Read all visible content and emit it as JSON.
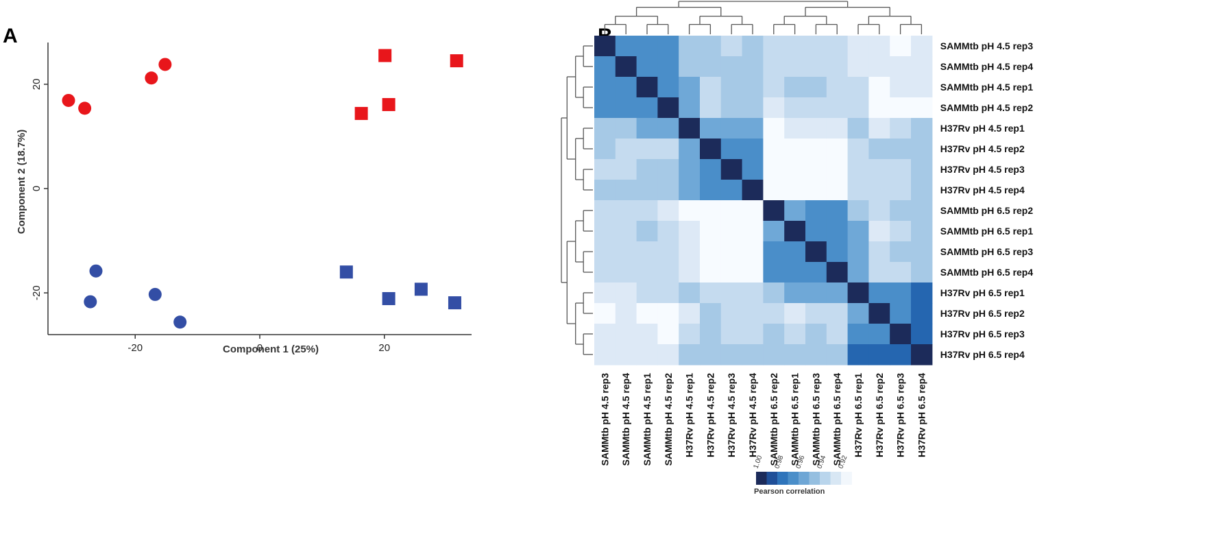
{
  "chart_data": [
    {
      "panel": "A",
      "type": "scatter",
      "xlabel": "Component 1 (25%)",
      "ylabel": "Component 2 (18.7%)",
      "xlim": [
        -34,
        34
      ],
      "ylim": [
        -28,
        28
      ],
      "xticks": [
        -20,
        0,
        20
      ],
      "yticks": [
        -20,
        0,
        20
      ],
      "colors": {
        "red": "#e8161b",
        "blue": "#334ea5"
      },
      "series": [
        {
          "name": "red-circles",
          "marker": "circle",
          "color": "red",
          "points": [
            [
              -30.7,
              16.9
            ],
            [
              -28.1,
              15.4
            ],
            [
              -17.4,
              21.2
            ],
            [
              -15.2,
              23.8
            ]
          ]
        },
        {
          "name": "red-squares",
          "marker": "square",
          "color": "red",
          "points": [
            [
              20.1,
              25.5
            ],
            [
              31.6,
              24.5
            ],
            [
              16.3,
              14.4
            ],
            [
              20.7,
              16.1
            ]
          ]
        },
        {
          "name": "blue-circles",
          "marker": "circle",
          "color": "blue",
          "points": [
            [
              -26.3,
              -15.8
            ],
            [
              -27.2,
              -21.7
            ],
            [
              -16.8,
              -20.3
            ],
            [
              -12.8,
              -25.6
            ]
          ]
        },
        {
          "name": "blue-squares",
          "marker": "square",
          "color": "blue",
          "points": [
            [
              13.9,
              -16.0
            ],
            [
              20.7,
              -21.1
            ],
            [
              25.9,
              -19.3
            ],
            [
              31.3,
              -21.9
            ]
          ]
        }
      ]
    },
    {
      "panel": "B",
      "type": "heatmap",
      "labels": [
        "SAMMtb pH 4.5 rep3",
        "SAMMtb pH 4.5 rep4",
        "SAMMtb pH 4.5 rep1",
        "SAMMtb pH 4.5 rep2",
        "H37Rv pH 4.5 rep1",
        "H37Rv pH 4.5 rep2",
        "H37Rv pH 4.5 rep3",
        "H37Rv pH 4.5 rep4",
        "SAMMtb pH 6.5 rep2",
        "SAMMtb pH 6.5 rep1",
        "SAMMtb pH 6.5 rep3",
        "SAMMtb pH 6.5 rep4",
        "H37Rv pH 6.5 rep1",
        "H37Rv pH 6.5 rep2",
        "H37Rv pH 6.5 rep3",
        "H37Rv pH 6.5 rep4"
      ],
      "matrix": [
        [
          1.0,
          0.96,
          0.96,
          0.96,
          0.94,
          0.94,
          0.93,
          0.94,
          0.93,
          0.93,
          0.93,
          0.93,
          0.92,
          0.92,
          0.91,
          0.92
        ],
        [
          0.96,
          1.0,
          0.96,
          0.96,
          0.94,
          0.94,
          0.94,
          0.94,
          0.93,
          0.93,
          0.93,
          0.93,
          0.92,
          0.92,
          0.92,
          0.92
        ],
        [
          0.96,
          0.96,
          1.0,
          0.96,
          0.95,
          0.93,
          0.94,
          0.94,
          0.93,
          0.94,
          0.94,
          0.93,
          0.93,
          0.91,
          0.92,
          0.92
        ],
        [
          0.96,
          0.96,
          0.96,
          1.0,
          0.95,
          0.93,
          0.94,
          0.94,
          0.92,
          0.93,
          0.93,
          0.93,
          0.93,
          0.91,
          0.91,
          0.91
        ],
        [
          0.94,
          0.94,
          0.95,
          0.95,
          1.0,
          0.95,
          0.95,
          0.95,
          0.91,
          0.92,
          0.92,
          0.92,
          0.94,
          0.92,
          0.93,
          0.94
        ],
        [
          0.94,
          0.93,
          0.93,
          0.93,
          0.95,
          1.0,
          0.96,
          0.96,
          0.91,
          0.91,
          0.91,
          0.91,
          0.93,
          0.94,
          0.94,
          0.94
        ],
        [
          0.93,
          0.93,
          0.94,
          0.94,
          0.95,
          0.96,
          1.0,
          0.96,
          0.91,
          0.91,
          0.91,
          0.91,
          0.93,
          0.93,
          0.93,
          0.94
        ],
        [
          0.94,
          0.94,
          0.94,
          0.94,
          0.95,
          0.96,
          0.96,
          1.0,
          0.91,
          0.91,
          0.91,
          0.91,
          0.93,
          0.93,
          0.93,
          0.94
        ],
        [
          0.93,
          0.93,
          0.93,
          0.92,
          0.91,
          0.91,
          0.91,
          0.91,
          1.0,
          0.95,
          0.96,
          0.96,
          0.94,
          0.93,
          0.94,
          0.94
        ],
        [
          0.93,
          0.93,
          0.94,
          0.93,
          0.92,
          0.91,
          0.91,
          0.91,
          0.95,
          1.0,
          0.96,
          0.96,
          0.95,
          0.92,
          0.93,
          0.94
        ],
        [
          0.93,
          0.93,
          0.93,
          0.93,
          0.92,
          0.91,
          0.91,
          0.91,
          0.96,
          0.96,
          1.0,
          0.96,
          0.95,
          0.93,
          0.94,
          0.94
        ],
        [
          0.93,
          0.93,
          0.93,
          0.93,
          0.92,
          0.91,
          0.91,
          0.91,
          0.96,
          0.96,
          0.96,
          1.0,
          0.95,
          0.93,
          0.93,
          0.94
        ],
        [
          0.92,
          0.92,
          0.93,
          0.93,
          0.94,
          0.93,
          0.93,
          0.93,
          0.94,
          0.95,
          0.95,
          0.95,
          1.0,
          0.96,
          0.96,
          0.97
        ],
        [
          0.91,
          0.92,
          0.91,
          0.91,
          0.92,
          0.94,
          0.93,
          0.93,
          0.93,
          0.92,
          0.93,
          0.93,
          0.95,
          1.0,
          0.96,
          0.97
        ],
        [
          0.92,
          0.92,
          0.92,
          0.91,
          0.93,
          0.94,
          0.93,
          0.93,
          0.94,
          0.93,
          0.94,
          0.93,
          0.96,
          0.96,
          1.0,
          0.97
        ],
        [
          0.92,
          0.92,
          0.92,
          0.92,
          0.94,
          0.94,
          0.94,
          0.94,
          0.94,
          0.94,
          0.94,
          0.94,
          0.97,
          0.97,
          0.97,
          1.0
        ]
      ],
      "dendrogram": {
        "row_groups": [
          [
            "SAMMtb pH 4.5"
          ],
          [
            "H37Rv pH 4.5"
          ],
          [
            "SAMMtb pH 6.5"
          ],
          [
            "H37Rv pH 6.5"
          ]
        ],
        "merge_order": "((pH4.5 SAMMtb, pH4.5 H37Rv), (pH6.5 SAMMtb, pH6.5 H37Rv))"
      },
      "legend": {
        "title": "Pearson correlation",
        "tick_labels": [
          "1.00",
          "0.98",
          "0.96",
          "0.94",
          "0.92"
        ],
        "colors": [
          "#1c2b5a",
          "#1f4f98",
          "#2e74bb",
          "#4a8ec9",
          "#6ea6d5",
          "#95bfe0",
          "#b9d5ec",
          "#d8e7f4",
          "#f2f7fc"
        ]
      }
    }
  ],
  "panel_labels": {
    "a": "A",
    "b": "B"
  }
}
